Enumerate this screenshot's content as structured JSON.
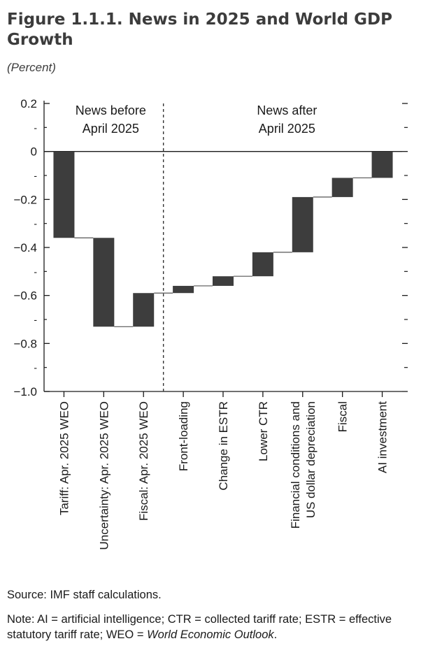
{
  "figure": {
    "title": "Figure 1.1.1.  News in 2025 and World GDP Growth",
    "unit": "(Percent)"
  },
  "chart_data": {
    "type": "bar",
    "subtype": "waterfall",
    "ylim": [
      -1.0,
      0.2
    ],
    "yticks": [
      0.2,
      0,
      -0.2,
      -0.4,
      -0.6,
      -0.8,
      -1.0
    ],
    "ytick_labels": [
      "0.2",
      "0",
      "−0.2",
      "−0.4",
      "−0.6",
      "−0.8",
      "−1.0"
    ],
    "categories": [
      "Tariff: Apr. 2025 WEO",
      "Uncertainty: Apr. 2025 WEO",
      "Fiscal: Apr. 2025 WEO",
      "Front-loading",
      "Change in ESTR",
      "Lower CTR",
      "Financial conditions and US dollar depreciation",
      "Fiscal",
      "AI investment"
    ],
    "category_label_lines": [
      [
        "Tariff: Apr. 2025 WEO"
      ],
      [
        "Uncertainty: Apr. 2025 WEO"
      ],
      [
        "Fiscal: Apr. 2025 WEO"
      ],
      [
        "Front-loading"
      ],
      [
        "Change in ESTR"
      ],
      [
        "Lower CTR"
      ],
      [
        "Financial conditions and",
        "US dollar depreciation"
      ],
      [
        "Fiscal"
      ],
      [
        "AI investment"
      ]
    ],
    "bars": [
      {
        "start": 0.0,
        "end": -0.36
      },
      {
        "start": -0.36,
        "end": -0.73
      },
      {
        "start": -0.73,
        "end": -0.59
      },
      {
        "start": -0.59,
        "end": -0.56
      },
      {
        "start": -0.56,
        "end": -0.52
      },
      {
        "start": -0.52,
        "end": -0.42
      },
      {
        "start": -0.42,
        "end": -0.19
      },
      {
        "start": -0.19,
        "end": -0.11
      },
      {
        "start": -0.11,
        "end": 0.0
      }
    ],
    "annotations": [
      {
        "text_lines": [
          "News before",
          "April 2025"
        ],
        "region": "left of divider"
      },
      {
        "text_lines": [
          "News after",
          "April 2025"
        ],
        "region": "right of divider"
      }
    ],
    "divider_after_category": 3,
    "grid": false,
    "colors": {
      "bar": "#3d3d3d",
      "axis": "#1a1a1a"
    }
  },
  "source": "Source: IMF staff calculations.",
  "note": {
    "text": "Note: AI = artificial intelligence; CTR = collected tariff rate; ESTR = effective statutory tariff rate; WEO = ",
    "italic": "World Economic Outlook",
    "end": "."
  }
}
